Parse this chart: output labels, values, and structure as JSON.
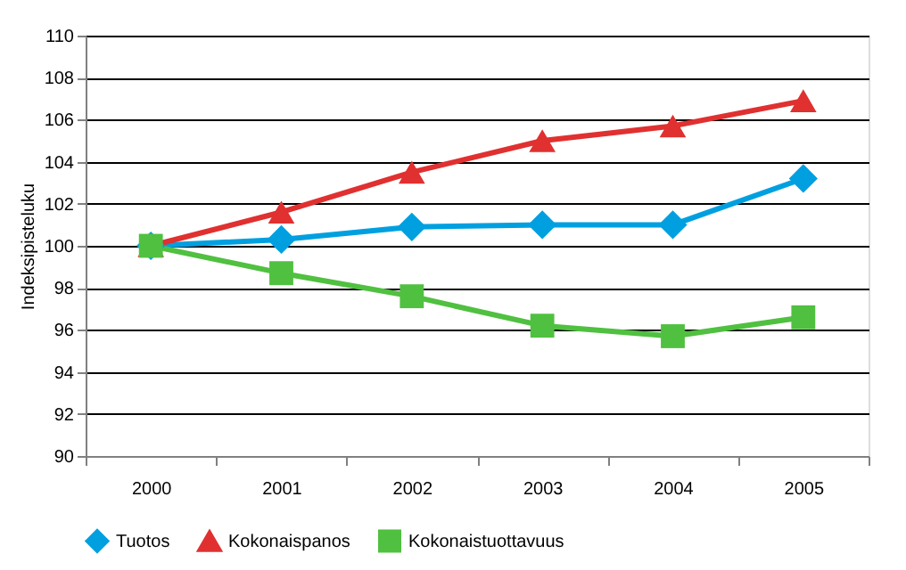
{
  "chart_data": {
    "type": "line",
    "ylabel": "Indeksipisteluku",
    "categories": [
      "2000",
      "2001",
      "2002",
      "2003",
      "2004",
      "2005"
    ],
    "ylim": [
      90,
      110
    ],
    "yticks": [
      90,
      92,
      94,
      96,
      98,
      100,
      102,
      104,
      106,
      108,
      110
    ],
    "grid": "y",
    "legend": "bottom",
    "line_style": "solid",
    "series": [
      {
        "name": "Tuotos",
        "color": "#00a0e0",
        "marker": "diamond",
        "values": [
          100,
          100.3,
          100.9,
          101.0,
          101.0,
          103.2
        ]
      },
      {
        "name": "Kokonaispanos",
        "color": "#e03030",
        "marker": "triangle",
        "values": [
          100,
          101.6,
          103.5,
          105.0,
          105.7,
          106.9
        ]
      },
      {
        "name": "Kokonaistuottavuus",
        "color": "#50c040",
        "marker": "square",
        "values": [
          100,
          98.7,
          97.6,
          96.2,
          95.7,
          96.6
        ]
      }
    ]
  }
}
